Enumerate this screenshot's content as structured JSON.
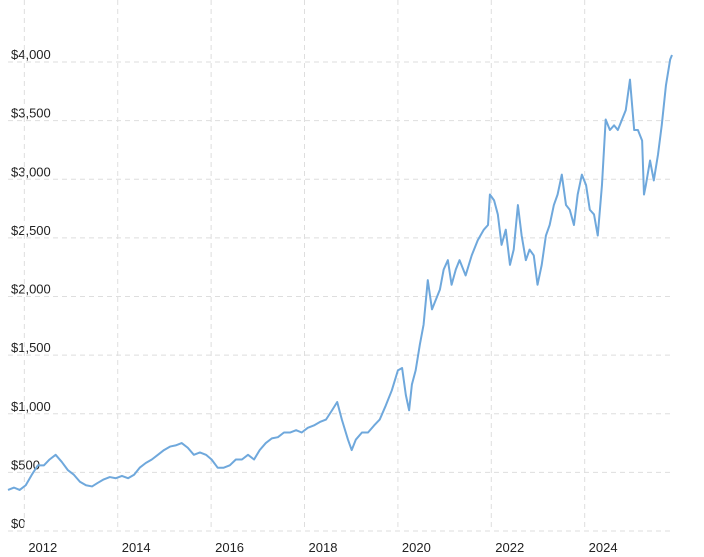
{
  "chart_data": {
    "type": "line",
    "x": [
      2011.65,
      2011.78,
      2011.9,
      2012.03,
      2012.16,
      2012.29,
      2012.42,
      2012.54,
      2012.67,
      2012.8,
      2012.93,
      2013.06,
      2013.19,
      2013.32,
      2013.45,
      2013.57,
      2013.7,
      2013.83,
      2013.96,
      2014.09,
      2014.22,
      2014.35,
      2014.47,
      2014.6,
      2014.73,
      2014.86,
      2014.99,
      2015.12,
      2015.24,
      2015.37,
      2015.5,
      2015.63,
      2015.76,
      2015.89,
      2016.01,
      2016.14,
      2016.27,
      2016.4,
      2016.53,
      2016.66,
      2016.79,
      2016.92,
      2017.04,
      2017.17,
      2017.3,
      2017.43,
      2017.56,
      2017.69,
      2017.82,
      2017.94,
      2018.07,
      2018.2,
      2018.33,
      2018.46,
      2018.59,
      2018.7,
      2018.8,
      2018.93,
      2019.01,
      2019.1,
      2019.23,
      2019.36,
      2019.49,
      2019.61,
      2019.74,
      2019.87,
      2020.0,
      2020.09,
      2020.17,
      2020.24,
      2020.3,
      2020.38,
      2020.47,
      2020.55,
      2020.64,
      2020.73,
      2020.81,
      2020.9,
      2020.98,
      2021.07,
      2021.15,
      2021.24,
      2021.32,
      2021.45,
      2021.58,
      2021.71,
      2021.84,
      2021.93,
      2021.97,
      2022.06,
      2022.14,
      2022.22,
      2022.31,
      2022.4,
      2022.48,
      2022.57,
      2022.65,
      2022.74,
      2022.82,
      2022.91,
      2022.99,
      2023.08,
      2023.17,
      2023.25,
      2023.34,
      2023.42,
      2023.51,
      2023.6,
      2023.68,
      2023.77,
      2023.85,
      2023.94,
      2024.03,
      2024.11,
      2024.2,
      2024.28,
      2024.37,
      2024.45,
      2024.54,
      2024.63,
      2024.71,
      2024.8,
      2024.88,
      2024.97,
      2025.06,
      2025.14,
      2025.23,
      2025.27,
      2025.31,
      2025.4,
      2025.48,
      2025.57,
      2025.65,
      2025.74,
      2025.83,
      2025.87
    ],
    "values": [
      350,
      370,
      350,
      390,
      480,
      560,
      560,
      610,
      650,
      590,
      520,
      480,
      420,
      390,
      380,
      410,
      440,
      460,
      450,
      470,
      450,
      480,
      540,
      580,
      610,
      650,
      690,
      720,
      730,
      750,
      710,
      650,
      670,
      650,
      610,
      540,
      540,
      560,
      610,
      610,
      650,
      610,
      690,
      750,
      790,
      800,
      840,
      840,
      860,
      840,
      880,
      900,
      930,
      950,
      1030,
      1100,
      950,
      780,
      690,
      780,
      840,
      840,
      900,
      950,
      1070,
      1200,
      1370,
      1390,
      1160,
      1030,
      1250,
      1370,
      1590,
      1760,
      2140,
      1890,
      1970,
      2060,
      2230,
      2310,
      2100,
      2230,
      2310,
      2180,
      2350,
      2480,
      2570,
      2610,
      2870,
      2820,
      2700,
      2440,
      2570,
      2270,
      2400,
      2780,
      2520,
      2310,
      2400,
      2350,
      2100,
      2270,
      2520,
      2610,
      2780,
      2870,
      3040,
      2780,
      2740,
      2610,
      2870,
      3040,
      2950,
      2740,
      2700,
      2520,
      2950,
      3510,
      3420,
      3460,
      3420,
      3510,
      3590,
      3850,
      3420,
      3420,
      3330,
      2870,
      2950,
      3160,
      2990,
      3210,
      3460,
      3800,
      4020,
      4060
    ],
    "color": "#6fa8dc",
    "xlim": [
      2011.65,
      2025.87
    ],
    "xticks": [
      2012,
      2014,
      2016,
      2018,
      2020,
      2022,
      2024
    ],
    "ylim": [
      0,
      4500
    ],
    "yticks": [
      {
        "value": 0,
        "label": "$0"
      },
      {
        "value": 500,
        "label": "$500"
      },
      {
        "value": 1000,
        "label": "$1,000"
      },
      {
        "value": 1500,
        "label": "$1,500"
      },
      {
        "value": 2000,
        "label": "$2,000"
      },
      {
        "value": 2500,
        "label": "$2,500"
      },
      {
        "value": 3000,
        "label": "$3,000"
      },
      {
        "value": 3500,
        "label": "$3,500"
      },
      {
        "value": 4000,
        "label": "$4,000"
      }
    ],
    "grid": true
  }
}
